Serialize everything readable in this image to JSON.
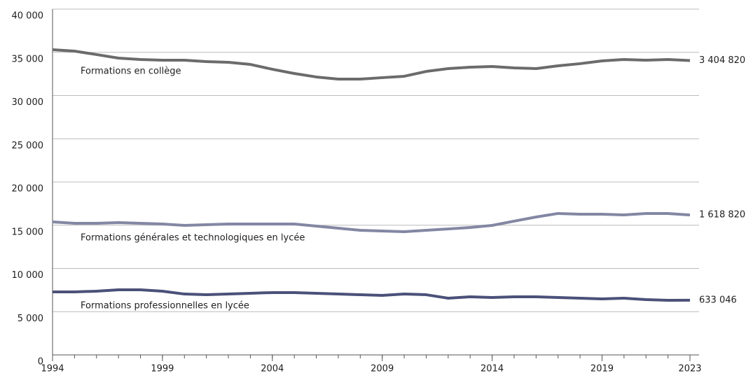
{
  "chart_data": {
    "type": "line",
    "x": [
      1994,
      1995,
      1996,
      1997,
      1998,
      1999,
      2000,
      2001,
      2002,
      2003,
      2004,
      2005,
      2006,
      2007,
      2008,
      2009,
      2010,
      2011,
      2012,
      2013,
      2014,
      2015,
      2016,
      2017,
      2018,
      2019,
      2020,
      2021,
      2022,
      2023
    ],
    "series": [
      {
        "name": "Formations en collège",
        "color": "#6b6b6b",
        "values": [
          35300,
          35140,
          34740,
          34330,
          34170,
          34090,
          34090,
          33930,
          33850,
          33600,
          33040,
          32550,
          32150,
          31900,
          31900,
          32070,
          32230,
          32790,
          33120,
          33280,
          33360,
          33200,
          33120,
          33440,
          33690,
          34010,
          34170,
          34090,
          34170,
          34048.2
        ],
        "value_labels": [
          null,
          null,
          null,
          null,
          null,
          null,
          null,
          null,
          null,
          null,
          null,
          null,
          null,
          null,
          null,
          null,
          null,
          null,
          null,
          null,
          null,
          null,
          null,
          null,
          null,
          null,
          null,
          null,
          null,
          "3 404 820"
        ]
      },
      {
        "name": "Formations générales et technologiques en lycée",
        "color": "#8387a3",
        "values": [
          15380,
          15220,
          15220,
          15300,
          15220,
          15140,
          14980,
          15060,
          15140,
          15140,
          15140,
          15140,
          14900,
          14660,
          14410,
          14330,
          14250,
          14410,
          14570,
          14740,
          14980,
          15470,
          15950,
          16360,
          16280,
          16280,
          16190,
          16360,
          16360,
          16188.2
        ],
        "value_labels": [
          null,
          null,
          null,
          null,
          null,
          null,
          null,
          null,
          null,
          null,
          null,
          null,
          null,
          null,
          null,
          null,
          null,
          null,
          null,
          null,
          null,
          null,
          null,
          null,
          null,
          null,
          null,
          null,
          null,
          "1 618 820"
        ]
      },
      {
        "name": "Formations professionnelles en lycée",
        "color": "#4a5179",
        "values": [
          7290,
          7290,
          7370,
          7530,
          7530,
          7370,
          7040,
          6960,
          7040,
          7130,
          7210,
          7210,
          7130,
          7040,
          6960,
          6880,
          7040,
          6960,
          6560,
          6720,
          6640,
          6720,
          6720,
          6640,
          6560,
          6480,
          6560,
          6400,
          6320,
          6330.46
        ],
        "value_labels": [
          null,
          null,
          null,
          null,
          null,
          null,
          null,
          null,
          null,
          null,
          null,
          null,
          null,
          null,
          null,
          null,
          null,
          null,
          null,
          null,
          null,
          null,
          null,
          null,
          null,
          null,
          null,
          null,
          null,
          "633 046"
        ]
      }
    ],
    "xlim": [
      1994,
      2023
    ],
    "xticks": [
      1994,
      1999,
      2004,
      2009,
      2014,
      2019,
      2023
    ],
    "ylim": [
      0,
      40000
    ],
    "yticks": [
      0,
      {
        "value": 5000,
        "label": "5 000"
      },
      {
        "value": 10000,
        "label": "10 000"
      },
      {
        "value": 15000,
        "label": "15 000"
      },
      {
        "value": 20000,
        "label": "20 000"
      },
      {
        "value": 25000,
        "label": "25 000"
      },
      {
        "value": 30000,
        "label": "30 000"
      },
      {
        "value": 35000,
        "label": "35 000"
      },
      {
        "value": 40000,
        "label": "40 000"
      }
    ],
    "grid": true
  }
}
